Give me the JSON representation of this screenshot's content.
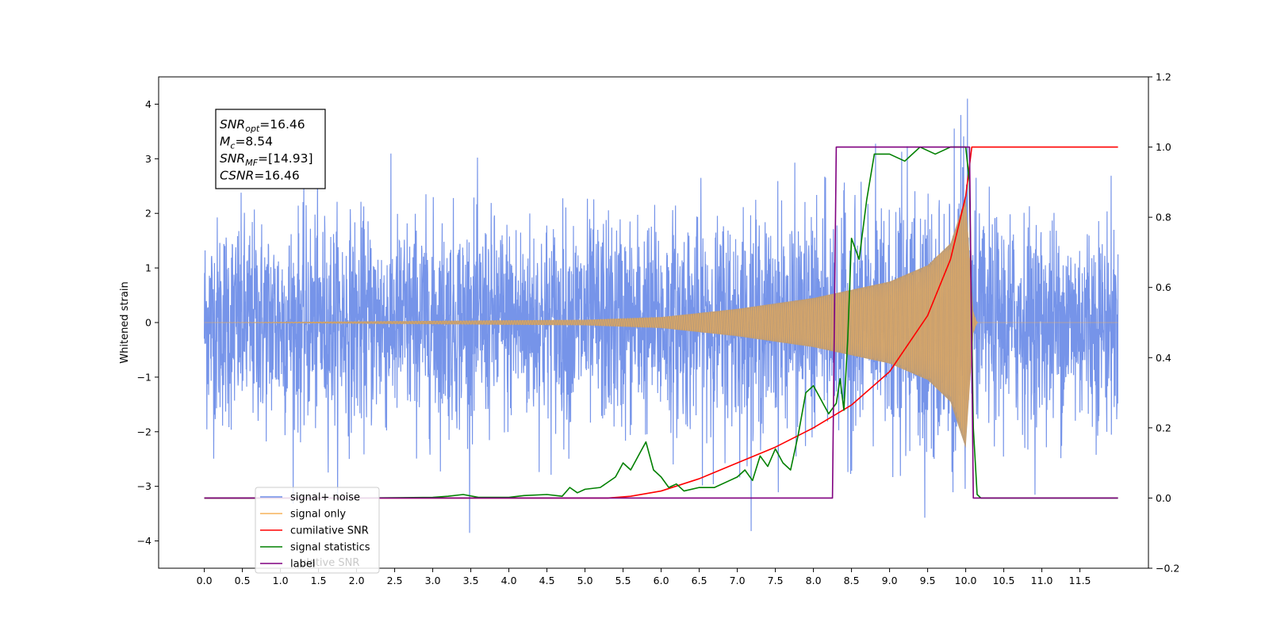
{
  "chart_data": {
    "type": "line",
    "title": "",
    "xlabel": "",
    "ylabel": "Whitened strain",
    "xlim": [
      -0.6,
      12.4
    ],
    "ylim_left": [
      -4.5,
      4.5
    ],
    "ylim_right": [
      -0.2,
      1.2
    ],
    "x_ticks": [
      "0.0",
      "0.5",
      "1.0",
      "1.5",
      "2.0",
      "2.5",
      "3.0",
      "3.5",
      "4.0",
      "4.5",
      "5.0",
      "5.5",
      "6.0",
      "6.5",
      "7.0",
      "7.5",
      "8.0",
      "8.5",
      "9.0",
      "9.5",
      "10.0",
      "10.5",
      "11.0",
      "11.5"
    ],
    "y_ticks_left": [
      "4",
      "3",
      "2",
      "1",
      "0",
      "−1",
      "−2",
      "−3",
      "−4"
    ],
    "y_ticks_right": [
      "1.2",
      "1.0",
      "0.8",
      "0.6",
      "0.4",
      "0.2",
      "0.0",
      "−0.2"
    ],
    "grid": false,
    "legend_position": "lower-left",
    "colors": {
      "signal_noise": "#6f8ee8",
      "signal_only": "#f5b25a",
      "cumulative_snr": "#ff0000",
      "signal_statistics": "#008000",
      "label": "#800080"
    },
    "annotation": {
      "lines": [
        {
          "base": "SNR",
          "sub": "opt",
          "rest": "=16.46"
        },
        {
          "base": "M",
          "sub": "c",
          "rest": "=8.54"
        },
        {
          "base": "SNR",
          "sub": "MF",
          "rest": "=[14.93]"
        },
        {
          "base": "CSNR",
          "sub": "",
          "rest": "=16.46"
        }
      ]
    },
    "legend": [
      {
        "key": "signal_noise",
        "label": "signal+ noise"
      },
      {
        "key": "signal_only",
        "label": "signal only"
      },
      {
        "key": "cumulative_snr",
        "label": "cumilative SNR"
      },
      {
        "key": "signal_statistics",
        "label": "signal statistics"
      },
      {
        "key": "label",
        "label": "label"
      }
    ],
    "legend_ghost_text": "ulative SNR",
    "series": [
      {
        "name": "signal+ noise",
        "axis": "left",
        "description_points": "noise band roughly ±2.3 with peaks to ±4, x 0 to 12",
        "x_range": [
          0,
          12
        ]
      },
      {
        "name": "signal only",
        "axis": "left",
        "chirp_envelope": {
          "x": [
            0,
            5,
            6,
            7,
            8,
            9,
            9.5,
            9.8,
            10.0,
            10.1,
            10.15
          ],
          "amp": [
            0.0,
            0.05,
            0.1,
            0.25,
            0.45,
            0.75,
            1.05,
            1.45,
            2.3,
            0.2,
            0
          ]
        }
      },
      {
        "name": "cumilative SNR",
        "axis": "right",
        "x": [
          0,
          5.3,
          5.6,
          6.0,
          6.5,
          7.0,
          7.5,
          8.0,
          8.5,
          9.0,
          9.5,
          9.8,
          10.0,
          10.08,
          10.1,
          12
        ],
        "y": [
          0,
          0,
          0.005,
          0.02,
          0.055,
          0.1,
          0.145,
          0.2,
          0.265,
          0.36,
          0.52,
          0.68,
          0.86,
          1.0,
          1.0,
          1.0
        ]
      },
      {
        "name": "signal statistics",
        "axis": "right",
        "x": [
          0,
          1,
          2,
          3,
          3.2,
          3.4,
          3.6,
          4,
          4.2,
          4.5,
          4.7,
          4.8,
          4.9,
          5,
          5.2,
          5.4,
          5.5,
          5.6,
          5.7,
          5.8,
          5.9,
          6.0,
          6.1,
          6.2,
          6.3,
          6.5,
          6.7,
          6.9,
          7.0,
          7.1,
          7.2,
          7.3,
          7.4,
          7.5,
          7.6,
          7.7,
          7.8,
          7.9,
          8.0,
          8.1,
          8.2,
          8.3,
          8.35,
          8.4,
          8.45,
          8.5,
          8.6,
          8.7,
          8.8,
          9.0,
          9.2,
          9.4,
          9.6,
          9.8,
          10.0,
          10.05,
          10.1,
          10.15,
          10.2,
          12
        ],
        "y": [
          0,
          0,
          0,
          0.002,
          0.005,
          0.01,
          0.002,
          0.002,
          0.007,
          0.01,
          0.005,
          0.03,
          0.015,
          0.025,
          0.03,
          0.06,
          0.1,
          0.08,
          0.12,
          0.16,
          0.08,
          0.06,
          0.03,
          0.04,
          0.02,
          0.03,
          0.03,
          0.05,
          0.06,
          0.08,
          0.05,
          0.12,
          0.09,
          0.14,
          0.1,
          0.08,
          0.18,
          0.3,
          0.32,
          0.28,
          0.24,
          0.27,
          0.34,
          0.25,
          0.45,
          0.74,
          0.68,
          0.85,
          0.98,
          0.98,
          0.96,
          1.0,
          0.98,
          1.0,
          1.0,
          0.9,
          0.2,
          0.01,
          0,
          0
        ]
      },
      {
        "name": "label",
        "axis": "right",
        "x": [
          0,
          8.25,
          8.3,
          10.05,
          10.1,
          12
        ],
        "y": [
          0,
          0,
          1,
          1,
          0,
          0
        ]
      }
    ]
  }
}
